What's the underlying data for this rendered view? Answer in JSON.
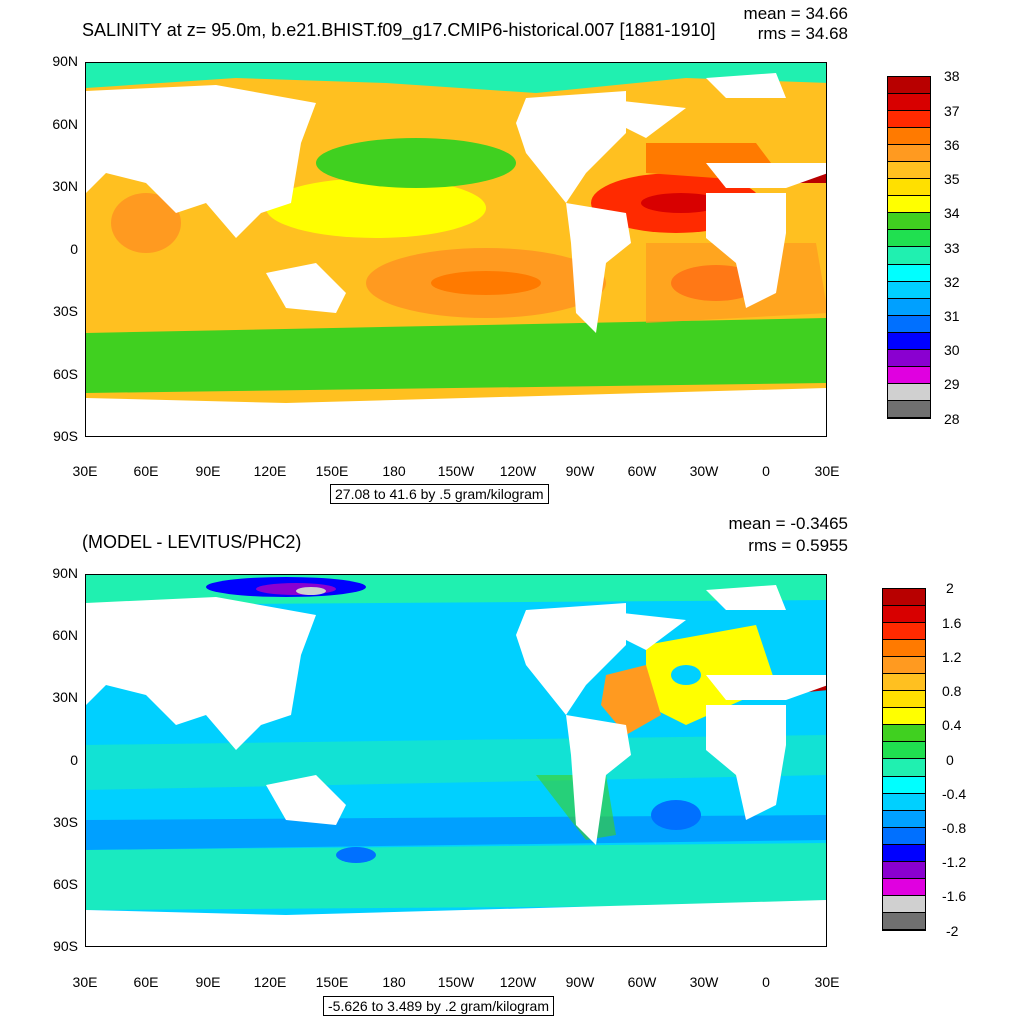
{
  "panels": [
    {
      "title": "SALINITY at z=  95.0m, b.e21.BHIST.f09_g17.CMIP6-historical.007 [1881-1910]",
      "mean": "mean = 34.66",
      "rms": "rms = 34.68",
      "range": "27.08 to 41.6 by .5 gram/kilogram",
      "colorbar_labels": [
        "38",
        "37",
        "36",
        "35",
        "34",
        "33",
        "32",
        "31",
        "30",
        "29",
        "28"
      ],
      "colorbar_colors": [
        "#b80000",
        "#d80000",
        "#ff2a00",
        "#ff7a00",
        "#ff9a20",
        "#ffc020",
        "#ffe000",
        "#ffff00",
        "#40d020",
        "#20e050",
        "#20f0b0",
        "#00ffff",
        "#00d0ff",
        "#00a0ff",
        "#0070ff",
        "#0000ff",
        "#8a00d0",
        "#e000e0",
        "#d0d0d0",
        "#707070"
      ]
    },
    {
      "title": "(MODEL - LEVITUS/PHC2)",
      "mean": "mean = -0.3465",
      "rms": "rms = 0.5955",
      "range": "-5.626 to 3.489 by .2 gram/kilogram",
      "colorbar_labels": [
        "2",
        "1.6",
        "1.2",
        "0.8",
        "0.4",
        "0",
        "-0.4",
        "-0.8",
        "-1.2",
        "-1.6",
        "-2"
      ],
      "colorbar_colors": [
        "#b80000",
        "#d80000",
        "#ff2a00",
        "#ff7a00",
        "#ff9a20",
        "#ffc020",
        "#ffe000",
        "#ffff00",
        "#40d020",
        "#20e050",
        "#20f0b0",
        "#00ffff",
        "#00d0ff",
        "#00a0ff",
        "#0070ff",
        "#0000ff",
        "#8a00d0",
        "#e000e0",
        "#d0d0d0",
        "#707070"
      ]
    }
  ],
  "axes": {
    "y_ticks": [
      "90N",
      "60N",
      "30N",
      "0",
      "30S",
      "60S",
      "90S"
    ],
    "x_ticks": [
      "30E",
      "60E",
      "90E",
      "120E",
      "150E",
      "180",
      "150W",
      "120W",
      "90W",
      "60W",
      "30W",
      "0",
      "30E"
    ]
  },
  "chart_data": [
    {
      "type": "heatmap",
      "title": "SALINITY at z=  95.0m, b.e21.BHIST.f09_g17.CMIP6-historical.007 [1881-1910]",
      "mean": 34.66,
      "rms": 34.68,
      "range": "27.08 to 41.6 by .5 gram/kilogram",
      "colorbar": [
        28,
        29,
        30,
        31,
        32,
        33,
        34,
        35,
        36,
        37,
        38
      ],
      "xlim": [
        "30E",
        "30E"
      ],
      "ylim": [
        "90S",
        "90N"
      ]
    },
    {
      "type": "heatmap",
      "title": "(MODEL - LEVITUS/PHC2)",
      "mean": -0.3465,
      "rms": 0.5955,
      "range": "-5.626 to 3.489 by .2 gram/kilogram",
      "colorbar": [
        -2,
        -1.6,
        -1.2,
        -0.8,
        -0.4,
        0,
        0.4,
        0.8,
        1.2,
        1.6,
        2
      ],
      "xlim": [
        "30E",
        "30E"
      ],
      "ylim": [
        "90S",
        "90N"
      ]
    }
  ]
}
